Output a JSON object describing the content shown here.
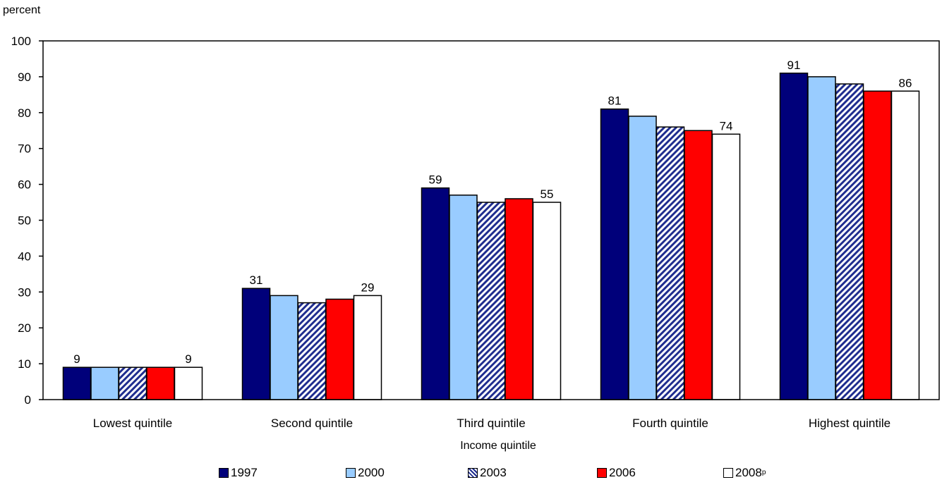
{
  "chart_data": {
    "type": "bar",
    "ylabel": "percent",
    "xlabel": "Income quintile",
    "ylim": [
      0,
      100
    ],
    "yticks": [
      0,
      10,
      20,
      30,
      40,
      50,
      60,
      70,
      80,
      90,
      100
    ],
    "grid": false,
    "legend_position": "bottom",
    "categories": [
      "Lowest quintile",
      "Second quintile",
      "Third quintile",
      "Fourth quintile",
      "Highest quintile"
    ],
    "series": [
      {
        "name": "1997",
        "color": "#00007a",
        "pattern": "solid",
        "values": [
          9,
          31,
          59,
          81,
          91
        ]
      },
      {
        "name": "2000",
        "color": "#99ccff",
        "pattern": "solid",
        "values": [
          9,
          29,
          57,
          79,
          90
        ]
      },
      {
        "name": "2003",
        "color": "#1f2d8f",
        "pattern": "diagonal-hatch",
        "values": [
          9,
          27,
          55,
          76,
          88
        ]
      },
      {
        "name": "2006",
        "color": "#ff0000",
        "pattern": "solid",
        "values": [
          9,
          28,
          56,
          75,
          86
        ]
      },
      {
        "name": "2008",
        "name_superscript": "p",
        "color": "#ffffff",
        "pattern": "solid",
        "values": [
          9,
          29,
          55,
          74,
          86
        ]
      }
    ],
    "labeled_series_indices": [
      0,
      4
    ]
  }
}
